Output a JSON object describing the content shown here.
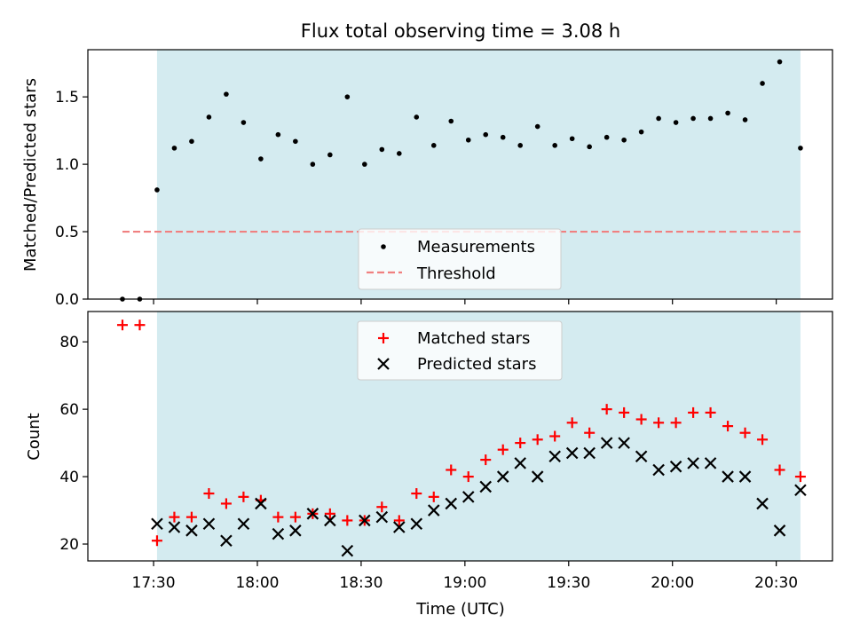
{
  "chart_data": [
    {
      "type": "scatter",
      "title": "Flux total observing time = 3.08 h",
      "ylabel": "Matched/Predicted stars",
      "xlabel": "",
      "ylim": [
        0,
        1.85
      ],
      "yticks": [
        0.0,
        0.5,
        1.0,
        1.5
      ],
      "ytick_labels": [
        "0.0",
        "0.5",
        "1.0",
        "1.5"
      ],
      "shaded_region_minutes": [
        1051,
        1237
      ],
      "shade_color": "#d4ebf0",
      "threshold": {
        "y": 0.5,
        "x_range_minutes": [
          1041,
          1237
        ],
        "color": "#f08080"
      },
      "legend": {
        "position": "lower center",
        "entries": [
          "Measurements",
          "Threshold"
        ]
      },
      "series": [
        {
          "name": "Measurements",
          "marker": "dot",
          "color": "#000000",
          "x_minutes": [
            1041,
            1046,
            1051,
            1056,
            1061,
            1066,
            1071,
            1076,
            1081,
            1086,
            1091,
            1096,
            1101,
            1106,
            1111,
            1116,
            1121,
            1126,
            1131,
            1136,
            1141,
            1146,
            1151,
            1156,
            1161,
            1166,
            1171,
            1176,
            1181,
            1186,
            1191,
            1196,
            1201,
            1206,
            1211,
            1216,
            1221,
            1226,
            1231,
            1237
          ],
          "y": [
            0.0,
            0.0,
            0.81,
            1.12,
            1.17,
            1.35,
            1.52,
            1.31,
            1.04,
            1.22,
            1.17,
            1.0,
            1.07,
            1.5,
            1.0,
            1.11,
            1.08,
            1.35,
            1.14,
            1.32,
            1.18,
            1.22,
            1.2,
            1.14,
            1.28,
            1.14,
            1.19,
            1.13,
            1.2,
            1.18,
            1.24,
            1.34,
            1.31,
            1.34,
            1.34,
            1.38,
            1.33,
            1.6,
            1.76,
            1.12
          ]
        }
      ]
    },
    {
      "type": "scatter",
      "title": "",
      "xlabel": "Time (UTC)",
      "ylabel": "Count",
      "ylim": [
        15,
        89
      ],
      "xlim_minutes": [
        1031,
        1246
      ],
      "yticks": [
        20,
        40,
        60,
        80
      ],
      "ytick_labels": [
        "20",
        "40",
        "60",
        "80"
      ],
      "xticks_minutes": [
        1050,
        1080,
        1110,
        1140,
        1170,
        1200,
        1230
      ],
      "xtick_labels": [
        "17:30",
        "18:00",
        "18:30",
        "19:00",
        "19:30",
        "20:00",
        "20:30"
      ],
      "shaded_region_minutes": [
        1051,
        1237
      ],
      "legend": {
        "position": "upper center",
        "entries": [
          "Matched stars",
          "Predicted stars"
        ]
      },
      "series": [
        {
          "name": "Matched stars",
          "marker": "plus",
          "color": "#ff0000",
          "x_minutes": [
            1041,
            1046,
            1051,
            1056,
            1061,
            1066,
            1071,
            1076,
            1081,
            1086,
            1091,
            1096,
            1101,
            1106,
            1111,
            1116,
            1121,
            1126,
            1131,
            1136,
            1141,
            1146,
            1151,
            1156,
            1161,
            1166,
            1171,
            1176,
            1181,
            1186,
            1191,
            1196,
            1201,
            1206,
            1211,
            1216,
            1221,
            1226,
            1231,
            1237
          ],
          "y": [
            85,
            85,
            21,
            28,
            28,
            35,
            32,
            34,
            33,
            28,
            28,
            29,
            29,
            27,
            27,
            31,
            27,
            35,
            34,
            42,
            40,
            45,
            48,
            50,
            51,
            52,
            56,
            53,
            60,
            59,
            57,
            56,
            56,
            59,
            59,
            55,
            53,
            51,
            42,
            40
          ]
        },
        {
          "name": "Predicted stars",
          "marker": "x",
          "color": "#000000",
          "x_minutes": [
            1051,
            1056,
            1061,
            1066,
            1071,
            1076,
            1081,
            1086,
            1091,
            1096,
            1101,
            1106,
            1111,
            1116,
            1121,
            1126,
            1131,
            1136,
            1141,
            1146,
            1151,
            1156,
            1161,
            1166,
            1171,
            1176,
            1181,
            1186,
            1191,
            1196,
            1201,
            1206,
            1211,
            1216,
            1221,
            1226,
            1231,
            1237
          ],
          "y": [
            26,
            25,
            24,
            26,
            21,
            26,
            32,
            23,
            24,
            29,
            27,
            18,
            27,
            28,
            25,
            26,
            30,
            32,
            34,
            37,
            40,
            44,
            40,
            46,
            47,
            47,
            50,
            50,
            46,
            42,
            43,
            44,
            44,
            40,
            40,
            32,
            24,
            36
          ]
        }
      ]
    }
  ]
}
